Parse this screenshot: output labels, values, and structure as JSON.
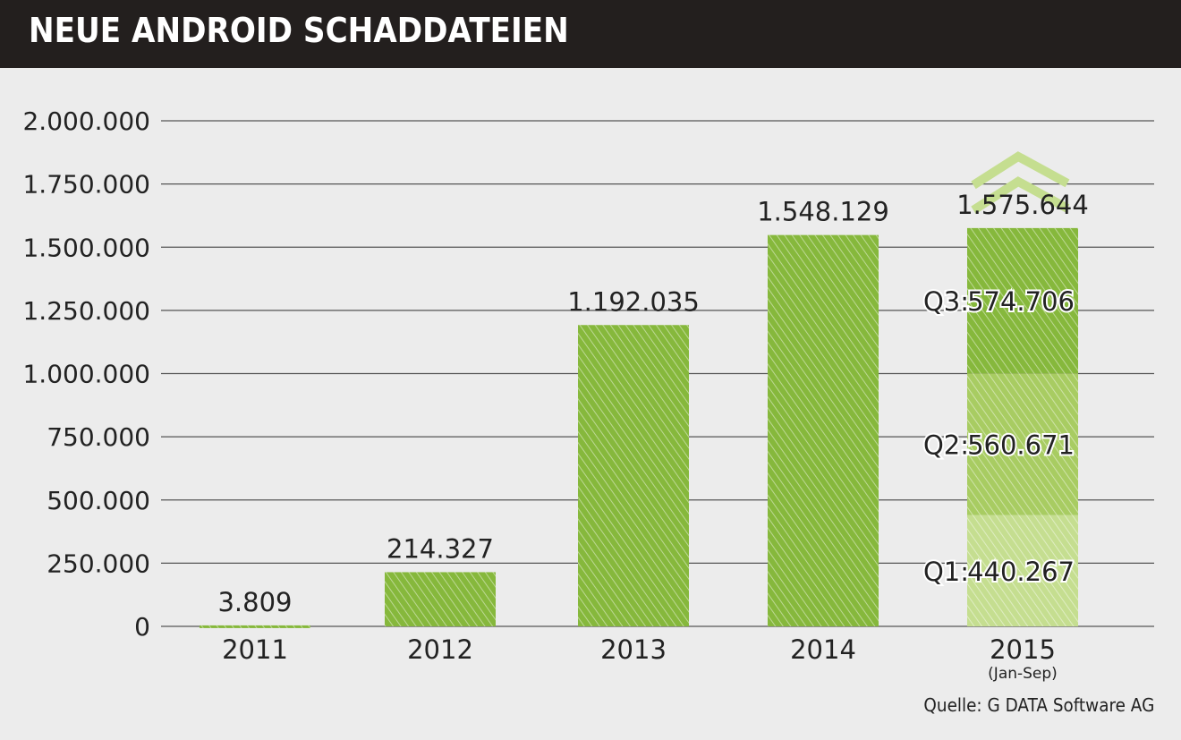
{
  "chart_data": {
    "type": "bar",
    "title": "NEUE ANDROID SCHADDATEIEN",
    "categories": [
      "2011",
      "2012",
      "2013",
      "2014",
      "2015"
    ],
    "category_notes": [
      "",
      "",
      "",
      "",
      "(Jan-Sep)"
    ],
    "values": [
      3809,
      214327,
      1192035,
      1548129,
      1575644
    ],
    "value_labels": [
      "3.809",
      "214.327",
      "1.192.035",
      "1.548.129",
      "1.575.644"
    ],
    "stacked_2015": [
      {
        "name": "Q1",
        "value": 440267,
        "label": "Q1:",
        "value_label": "440.267",
        "color": "#c5de90"
      },
      {
        "name": "Q2",
        "value": 560671,
        "label": "Q2:",
        "value_label": "560.671",
        "color": "#a8cc62"
      },
      {
        "name": "Q3",
        "value": 574706,
        "label": "Q3:",
        "value_label": "574.706",
        "color": "#86b83c"
      }
    ],
    "ylim": [
      0,
      2000000
    ],
    "yticks": [
      0,
      250000,
      500000,
      750000,
      1000000,
      1250000,
      1500000,
      1750000,
      2000000
    ],
    "ytick_labels": [
      "0",
      "250.000",
      "500.000",
      "750.000",
      "1.000.000",
      "1.250.000",
      "1.500.000",
      "1.750.000",
      "2.000.000"
    ],
    "grid": true,
    "bar_color": "#86b83c",
    "annotation": "up-arrow-icon above 2015",
    "source": "Quelle: G DATA Software AG"
  }
}
